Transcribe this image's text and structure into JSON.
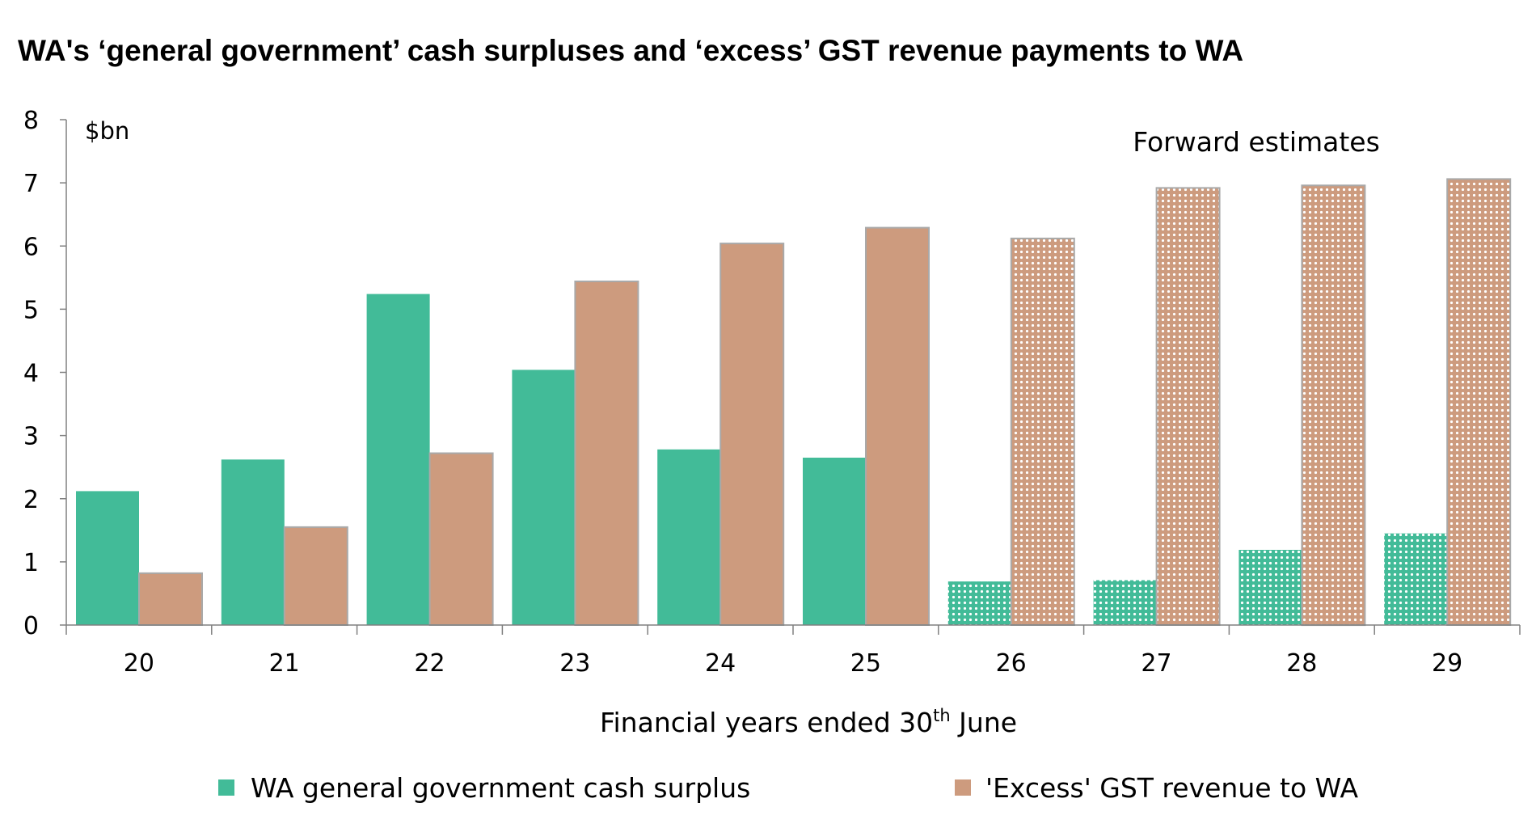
{
  "title": "WA's ‘general government’ cash surpluses and ‘excess’ GST revenue payments to WA",
  "colors": {
    "surplus": "#42bb98",
    "gst": "#cd9b7e",
    "gst_border": "#a9a9a9",
    "axis": "#808080"
  },
  "chart_data": {
    "type": "bar",
    "title": "WA's ‘general government’ cash surpluses and ‘excess’ GST revenue payments to WA",
    "unit_label": "$bn",
    "annotation": "Forward estimates",
    "xlabel": {
      "text": "Financial years ended 30",
      "superscript": "th",
      "suffix": " June"
    },
    "ylabel": "",
    "ylim": [
      0,
      8
    ],
    "yticks": [
      0,
      1,
      2,
      3,
      4,
      5,
      6,
      7,
      8
    ],
    "categories": [
      "20",
      "21",
      "22",
      "23",
      "24",
      "25",
      "26",
      "27",
      "28",
      "29"
    ],
    "forecast_from_index": 6,
    "series": [
      {
        "name": "WA general government cash surplus",
        "values": [
          2.12,
          2.62,
          5.24,
          4.04,
          2.78,
          2.65,
          0.69,
          0.71,
          1.19,
          1.45
        ]
      },
      {
        "name": "'Excess' GST revenue to WA",
        "values": [
          0.82,
          1.55,
          2.72,
          5.44,
          6.04,
          6.29,
          6.12,
          6.92,
          6.96,
          7.06
        ]
      }
    ],
    "legend_position": "bottom",
    "grid": false
  }
}
